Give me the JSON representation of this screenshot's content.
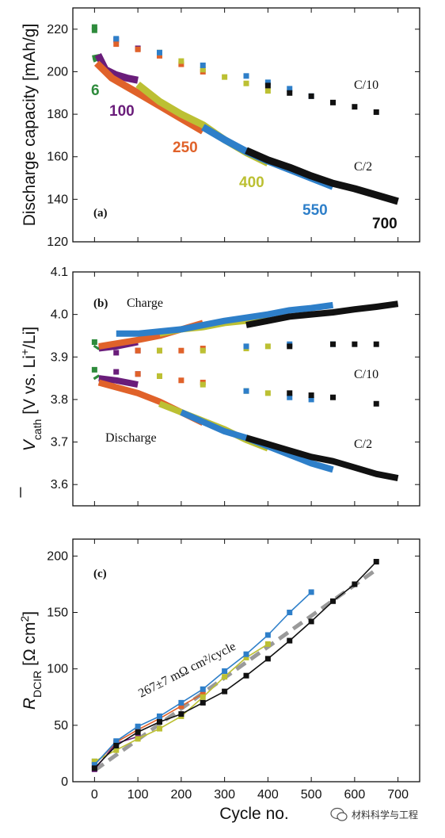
{
  "colors": {
    "c6": "#2e8b3c",
    "c100": "#6a1d7a",
    "c250": "#e0622a",
    "c400": "#bcc033",
    "c550": "#2e7fc9",
    "c700": "#111111",
    "fit": "#9a9a9a"
  },
  "shared_x_axis": {
    "label": "Cycle no.",
    "xlim": [
      -50,
      750
    ],
    "ticks": [
      0,
      100,
      200,
      300,
      400,
      500,
      600,
      700
    ]
  },
  "watermark": {
    "icon": "wechat-icon",
    "text": "材料科学与工程"
  },
  "chart_data": [
    {
      "type": "scatter",
      "panel_label": "(a)",
      "ylabel": "Discharge capacity [mAh/g]",
      "ylim": [
        120,
        230
      ],
      "yticks": [
        120,
        140,
        160,
        180,
        200,
        220
      ],
      "annotations": [
        "C/10",
        "C/2"
      ],
      "series": [
        {
          "name": "6",
          "color_key": "c6",
          "c2": [
            [
              2,
              208
            ],
            [
              4,
              206
            ],
            [
              6,
              205
            ]
          ],
          "c10": [
            [
              0,
              221
            ],
            [
              0,
              219.5
            ]
          ]
        },
        {
          "name": "100",
          "color_key": "c100",
          "c2": [
            [
              8,
              208
            ],
            [
              25,
              201
            ],
            [
              50,
              198.5
            ],
            [
              75,
              197
            ],
            [
              100,
              196
            ]
          ],
          "c10": [
            [
              50,
              215
            ],
            [
              100,
              211
            ]
          ]
        },
        {
          "name": "250",
          "color_key": "c250",
          "c2": [
            [
              5,
              204
            ],
            [
              40,
              197
            ],
            [
              100,
              190
            ],
            [
              150,
              184
            ],
            [
              200,
              178
            ],
            [
              250,
              172
            ]
          ],
          "c10": [
            [
              50,
              213
            ],
            [
              100,
              210.5
            ],
            [
              150,
              207.5
            ],
            [
              200,
              203.5
            ],
            [
              250,
              200
            ]
          ]
        },
        {
          "name": "400",
          "color_key": "c400",
          "c2": [
            [
              100,
              194
            ],
            [
              150,
              186
            ],
            [
              200,
              180
            ],
            [
              250,
              175
            ],
            [
              300,
              168
            ],
            [
              350,
              162
            ],
            [
              400,
              157
            ]
          ],
          "c10": [
            [
              150,
              209
            ],
            [
              200,
              205
            ],
            [
              250,
              201
            ],
            [
              300,
              197.5
            ],
            [
              350,
              194.5
            ],
            [
              400,
              191
            ]
          ]
        },
        {
          "name": "550",
          "color_key": "c550",
          "c2": [
            [
              250,
              174
            ],
            [
              300,
              168
            ],
            [
              350,
              162.5
            ],
            [
              400,
              158
            ],
            [
              450,
              154
            ],
            [
              500,
              150
            ],
            [
              550,
              146
            ]
          ],
          "c10": [
            [
              50,
              215.5
            ],
            [
              150,
              209
            ],
            [
              250,
              203
            ],
            [
              350,
              198
            ],
            [
              400,
              195
            ],
            [
              450,
              192
            ],
            [
              500,
              188.5
            ]
          ]
        },
        {
          "name": "700",
          "color_key": "c700",
          "c2": [
            [
              350,
              163
            ],
            [
              400,
              158.5
            ],
            [
              450,
              155
            ],
            [
              500,
              151
            ],
            [
              550,
              147.5
            ],
            [
              600,
              145
            ],
            [
              650,
              142
            ],
            [
              700,
              139
            ]
          ],
          "c10": [
            [
              400,
              193.5
            ],
            [
              450,
              190
            ],
            [
              500,
              188.5
            ],
            [
              550,
              185.5
            ],
            [
              600,
              183.5
            ],
            [
              650,
              181
            ]
          ]
        }
      ]
    },
    {
      "type": "scatter",
      "panel_label": "(b)",
      "ylabel_main": "V",
      "ylabel_sub": "cath",
      "ylabel_rest_1": " [V vs. Li",
      "ylabel_sup": "+",
      "ylabel_rest_2": "/Li]",
      "ylim": [
        3.55,
        4.1
      ],
      "yticks": [
        "3.6",
        "3.7",
        "3.8",
        "3.9",
        "4.0",
        "4.1"
      ],
      "annotations": [
        "Charge",
        "Discharge",
        "C/10",
        "C/2"
      ],
      "series": [
        {
          "name": "6",
          "color_key": "c6",
          "charge_c2": [
            [
              3,
              3.92
            ],
            [
              6,
              3.925
            ]
          ],
          "discharge_c2": [
            [
              3,
              3.855
            ],
            [
              6,
              3.85
            ]
          ],
          "charge_c10": [
            [
              0,
              3.935
            ]
          ],
          "discharge_c10": [
            [
              0,
              3.87
            ]
          ]
        },
        {
          "name": "100",
          "color_key": "c100",
          "charge_c2": [
            [
              10,
              3.92
            ],
            [
              50,
              3.925
            ],
            [
              100,
              3.935
            ]
          ],
          "discharge_c2": [
            [
              10,
              3.85
            ],
            [
              50,
              3.845
            ],
            [
              100,
              3.835
            ]
          ],
          "charge_c10": [
            [
              50,
              3.91
            ],
            [
              100,
              3.915
            ]
          ],
          "discharge_c10": [
            [
              50,
              3.865
            ],
            [
              100,
              3.86
            ]
          ]
        },
        {
          "name": "250",
          "color_key": "c250",
          "charge_c2": [
            [
              10,
              3.925
            ],
            [
              100,
              3.94
            ],
            [
              150,
              3.95
            ],
            [
              200,
              3.965
            ],
            [
              250,
              3.98
            ]
          ],
          "discharge_c2": [
            [
              10,
              3.84
            ],
            [
              100,
              3.815
            ],
            [
              150,
              3.795
            ],
            [
              200,
              3.77
            ],
            [
              250,
              3.745
            ]
          ],
          "charge_c10": [
            [
              100,
              3.915
            ],
            [
              150,
              3.915
            ],
            [
              200,
              3.915
            ],
            [
              250,
              3.92
            ]
          ],
          "discharge_c10": [
            [
              100,
              3.86
            ],
            [
              150,
              3.855
            ],
            [
              200,
              3.845
            ],
            [
              250,
              3.84
            ]
          ]
        },
        {
          "name": "400",
          "color_key": "c400",
          "charge_c2": [
            [
              150,
              3.955
            ],
            [
              200,
              3.965
            ],
            [
              250,
              3.97
            ],
            [
              300,
              3.98
            ],
            [
              350,
              3.985
            ],
            [
              400,
              3.995
            ]
          ],
          "discharge_c2": [
            [
              150,
              3.79
            ],
            [
              200,
              3.77
            ],
            [
              250,
              3.75
            ],
            [
              300,
              3.73
            ],
            [
              350,
              3.705
            ],
            [
              400,
              3.685
            ]
          ],
          "charge_c10": [
            [
              150,
              3.915
            ],
            [
              250,
              3.915
            ],
            [
              350,
              3.92
            ],
            [
              400,
              3.925
            ]
          ],
          "discharge_c10": [
            [
              150,
              3.855
            ],
            [
              250,
              3.835
            ],
            [
              350,
              3.82
            ],
            [
              400,
              3.815
            ]
          ]
        },
        {
          "name": "550",
          "color_key": "c550",
          "charge_c2": [
            [
              50,
              3.955
            ],
            [
              100,
              3.955
            ],
            [
              200,
              3.965
            ],
            [
              300,
              3.985
            ],
            [
              400,
              4.0
            ],
            [
              450,
              4.01
            ],
            [
              500,
              4.015
            ],
            [
              550,
              4.022
            ]
          ],
          "discharge_c2": [
            [
              200,
              3.77
            ],
            [
              300,
              3.725
            ],
            [
              350,
              3.71
            ],
            [
              400,
              3.69
            ],
            [
              450,
              3.67
            ],
            [
              500,
              3.65
            ],
            [
              550,
              3.635
            ]
          ],
          "charge_c10": [
            [
              350,
              3.925
            ],
            [
              450,
              3.93
            ],
            [
              550,
              3.93
            ]
          ],
          "discharge_c10": [
            [
              350,
              3.82
            ],
            [
              450,
              3.805
            ],
            [
              500,
              3.8
            ]
          ]
        },
        {
          "name": "700",
          "color_key": "c700",
          "charge_c2": [
            [
              350,
              3.975
            ],
            [
              400,
              3.985
            ],
            [
              450,
              3.995
            ],
            [
              500,
              4.0
            ],
            [
              550,
              4.005
            ],
            [
              600,
              4.012
            ],
            [
              650,
              4.018
            ],
            [
              700,
              4.025
            ]
          ],
          "discharge_c2": [
            [
              350,
              3.71
            ],
            [
              400,
              3.695
            ],
            [
              450,
              3.68
            ],
            [
              500,
              3.665
            ],
            [
              550,
              3.655
            ],
            [
              600,
              3.64
            ],
            [
              650,
              3.625
            ],
            [
              700,
              3.615
            ]
          ],
          "charge_c10": [
            [
              450,
              3.925
            ],
            [
              550,
              3.93
            ],
            [
              600,
              3.93
            ],
            [
              650,
              3.93
            ]
          ],
          "discharge_c10": [
            [
              450,
              3.815
            ],
            [
              500,
              3.81
            ],
            [
              550,
              3.805
            ],
            [
              650,
              3.79
            ]
          ]
        }
      ]
    },
    {
      "type": "line",
      "panel_label": "(c)",
      "ylabel_main": "R",
      "ylabel_sub": "DCIR",
      "ylabel_rest": " [Ω cm",
      "ylabel_sup": "2",
      "ylabel_end": "]",
      "ylim": [
        0,
        215
      ],
      "yticks": [
        0,
        50,
        100,
        150,
        200
      ],
      "fit_label": "267±7 mΩ cm²/cycle",
      "fit_line": [
        [
          0,
          10
        ],
        [
          650,
          188
        ]
      ],
      "series": [
        {
          "name": "6",
          "color_key": "c6",
          "points": [
            [
              0,
              18
            ]
          ]
        },
        {
          "name": "100",
          "color_key": "c100",
          "points": [
            [
              0,
              11
            ],
            [
              50,
              34
            ],
            [
              100,
              40
            ]
          ]
        },
        {
          "name": "250",
          "color_key": "c250",
          "points": [
            [
              0,
              15
            ],
            [
              50,
              35
            ],
            [
              100,
              46
            ],
            [
              150,
              56
            ],
            [
              200,
              67
            ],
            [
              250,
              78
            ]
          ]
        },
        {
          "name": "400",
          "color_key": "c400",
          "points": [
            [
              0,
              18
            ],
            [
              50,
              28
            ],
            [
              100,
              38
            ],
            [
              150,
              47
            ],
            [
              200,
              58
            ],
            [
              250,
              75
            ],
            [
              300,
              93
            ],
            [
              350,
              110
            ],
            [
              400,
              122
            ]
          ]
        },
        {
          "name": "550",
          "color_key": "c550",
          "points": [
            [
              0,
              15
            ],
            [
              50,
              36
            ],
            [
              100,
              49
            ],
            [
              150,
              58
            ],
            [
              200,
              70
            ],
            [
              250,
              82
            ],
            [
              300,
              98
            ],
            [
              350,
              113
            ],
            [
              400,
              130
            ],
            [
              450,
              150
            ],
            [
              500,
              168
            ]
          ]
        },
        {
          "name": "700",
          "color_key": "c700",
          "points": [
            [
              0,
              12
            ],
            [
              50,
              32
            ],
            [
              100,
              44
            ],
            [
              150,
              53
            ],
            [
              200,
              60
            ],
            [
              250,
              70
            ],
            [
              300,
              80
            ],
            [
              350,
              94
            ],
            [
              400,
              109
            ],
            [
              450,
              125
            ],
            [
              500,
              142
            ],
            [
              550,
              160
            ],
            [
              600,
              175
            ],
            [
              650,
              195
            ]
          ]
        }
      ]
    }
  ]
}
